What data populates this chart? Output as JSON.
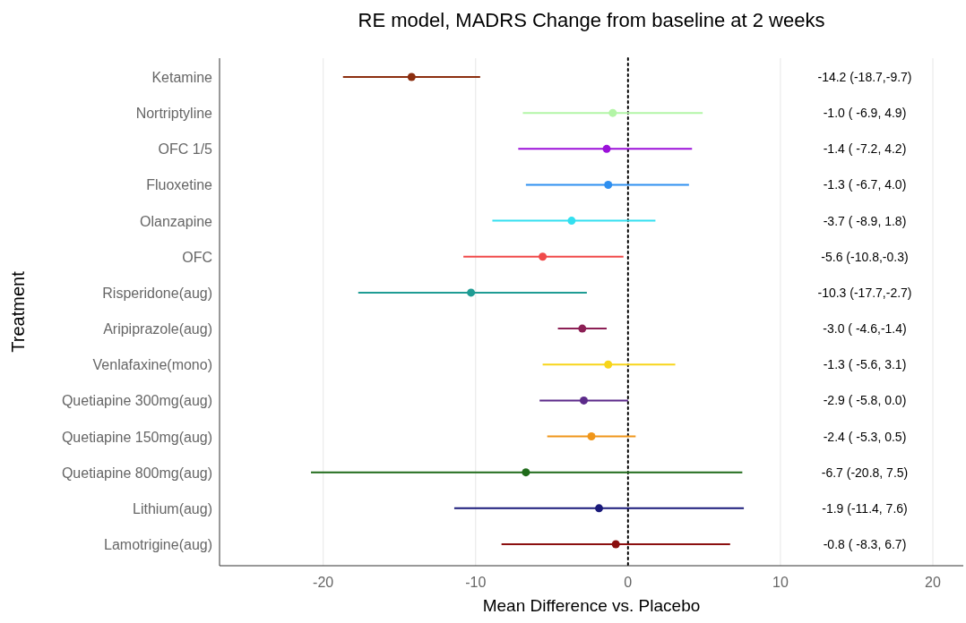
{
  "chart_data": {
    "type": "scatter",
    "orientation": "horizontal",
    "title": "RE model, MADRS Change from baseline at 2 weeks",
    "xlabel": "Mean Difference vs. Placebo",
    "ylabel": "Treatment",
    "categories": [
      "Ketamine",
      "Nortriptyline",
      "OFC 1/5",
      "Fluoxetine",
      "Olanzapine",
      "OFC",
      "Risperidone(aug)",
      "Aripiprazole(aug)",
      "Venlafaxine(mono)",
      "Quetiapine 300mg(aug)",
      "Quetiapine 150mg(aug)",
      "Quetiapine 800mg(aug)",
      "Lithium(aug)",
      "Lamotrigine(aug)"
    ],
    "values": [
      -14.2,
      -1.0,
      -1.4,
      -1.3,
      -3.7,
      -5.6,
      -10.3,
      -3.0,
      -1.3,
      -2.9,
      -2.4,
      -6.7,
      -1.9,
      -0.8
    ],
    "errors": [
      [
        -18.7,
        -9.7
      ],
      [
        -6.9,
        4.9
      ],
      [
        -7.2,
        4.2
      ],
      [
        -6.7,
        4.0
      ],
      [
        -8.9,
        1.8
      ],
      [
        -10.8,
        -0.3
      ],
      [
        -17.7,
        -2.7
      ],
      [
        -4.6,
        -1.4
      ],
      [
        -5.6,
        3.1
      ],
      [
        -5.8,
        0.0
      ],
      [
        -5.3,
        0.5
      ],
      [
        -20.8,
        7.5
      ],
      [
        -11.4,
        7.6
      ],
      [
        -8.3,
        6.7
      ]
    ],
    "annotations": [
      "-14.2 (-18.7,-9.7)",
      "-1.0 ( -6.9, 4.9)",
      "-1.4 ( -7.2, 4.2)",
      "-1.3 ( -6.7, 4.0)",
      "-3.7 ( -8.9, 1.8)",
      "-5.6 (-10.8,-0.3)",
      "-10.3 (-17.7,-2.7)",
      "-3.0 ( -4.6,-1.4)",
      "-1.3 ( -5.6, 3.1)",
      "-2.9 ( -5.8, 0.0)",
      "-2.4 ( -5.3, 0.5)",
      "-6.7 (-20.8, 7.5)",
      "-1.9 (-11.4, 7.6)",
      "-0.8 ( -8.3, 6.7)"
    ],
    "colors": [
      "#8b2e0f",
      "#b3f5a6",
      "#9b11d9",
      "#2e8ff0",
      "#33e0f0",
      "#f04a4a",
      "#1f9c94",
      "#8c1f55",
      "#f7d51a",
      "#5c2a8a",
      "#f0961a",
      "#1f6b1a",
      "#1a1a7a",
      "#8b0f0f"
    ],
    "xlim": [
      -26.8,
      22
    ],
    "xticks": [
      -20,
      -10,
      0,
      10,
      20
    ],
    "grid": "x",
    "marker": "circle",
    "legend": false,
    "ref_lines": [
      {
        "axis": "x",
        "value": 0,
        "label": null,
        "line_style": "dotted",
        "color": "#000000"
      }
    ]
  }
}
